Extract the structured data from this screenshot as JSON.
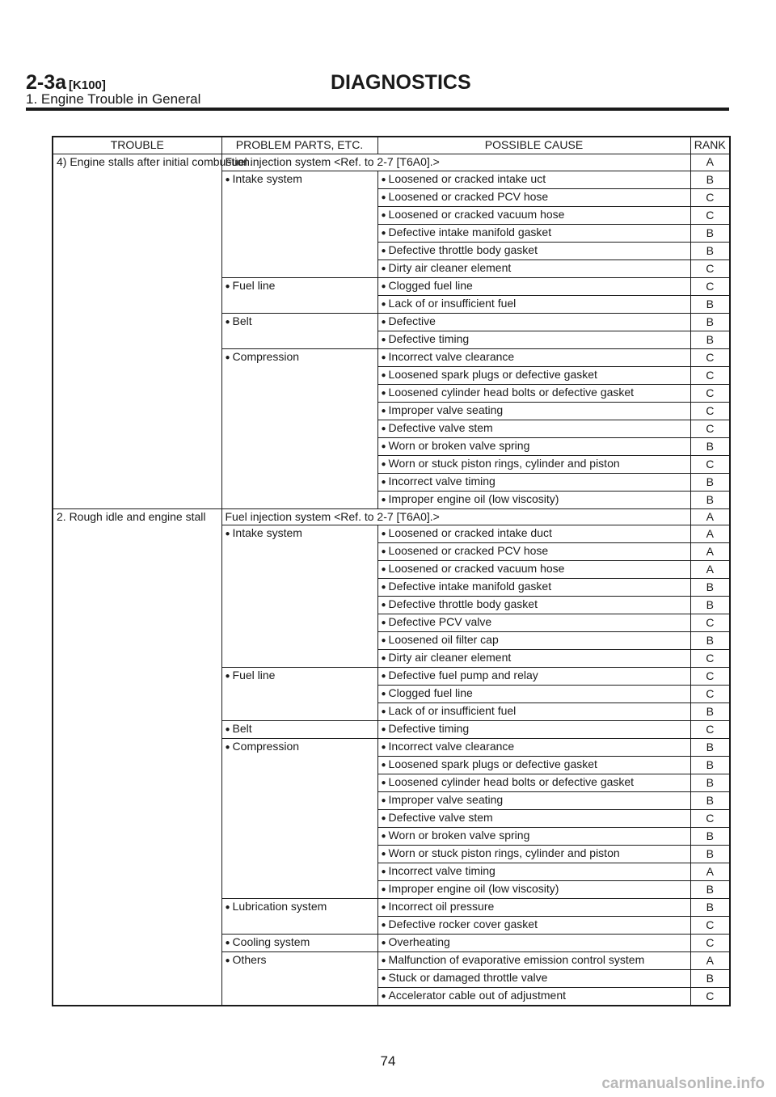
{
  "header": {
    "code": "2-3a",
    "subcode": "[K100]",
    "title": "DIAGNOSTICS",
    "section": "1. Engine Trouble in General"
  },
  "columns": [
    "TROUBLE",
    "PROBLEM PARTS, ETC.",
    "POSSIBLE CAUSE",
    "RANK"
  ],
  "groups": [
    {
      "trouble": "4) Engine stalls after initial combustion.",
      "fuel_injection": {
        "label": "Fuel injection system <Ref. to 2-7 [T6A0].>",
        "rank": "A"
      },
      "parts": [
        {
          "part": "Intake system",
          "causes": [
            {
              "cause": "Loosened or cracked intake uct",
              "rank": "B"
            },
            {
              "cause": "Loosened or cracked PCV hose",
              "rank": "C"
            },
            {
              "cause": "Loosened or cracked vacuum hose",
              "rank": "C"
            },
            {
              "cause": "Defective intake manifold gasket",
              "rank": "B"
            },
            {
              "cause": "Defective throttle body gasket",
              "rank": "B"
            },
            {
              "cause": "Dirty air cleaner element",
              "rank": "C"
            }
          ]
        },
        {
          "part": "Fuel line",
          "causes": [
            {
              "cause": "Clogged fuel line",
              "rank": "C"
            },
            {
              "cause": "Lack of or insufficient fuel",
              "rank": "B"
            }
          ]
        },
        {
          "part": "Belt",
          "causes": [
            {
              "cause": "Defective",
              "rank": "B"
            },
            {
              "cause": "Defective timing",
              "rank": "B"
            }
          ]
        },
        {
          "part": "Compression",
          "causes": [
            {
              "cause": "Incorrect valve clearance",
              "rank": "C"
            },
            {
              "cause": "Loosened spark plugs or defective gasket",
              "rank": "C"
            },
            {
              "cause": "Loosened cylinder head bolts or defective gasket",
              "rank": "C"
            },
            {
              "cause": "Improper valve seating",
              "rank": "C"
            },
            {
              "cause": "Defective valve stem",
              "rank": "C"
            },
            {
              "cause": "Worn or broken valve spring",
              "rank": "B"
            },
            {
              "cause": "Worn or stuck piston rings, cylinder and piston",
              "rank": "C"
            },
            {
              "cause": "Incorrect valve timing",
              "rank": "B"
            },
            {
              "cause": "Improper engine oil (low viscosity)",
              "rank": "B"
            }
          ]
        }
      ]
    },
    {
      "trouble": "2. Rough idle and engine stall",
      "fuel_injection": {
        "label": "Fuel injection system <Ref. to 2-7 [T6A0].>",
        "rank": "A"
      },
      "parts": [
        {
          "part": "Intake system",
          "causes": [
            {
              "cause": "Loosened or cracked intake duct",
              "rank": "A"
            },
            {
              "cause": "Loosened or cracked PCV hose",
              "rank": "A"
            },
            {
              "cause": "Loosened or cracked vacuum hose",
              "rank": "A"
            },
            {
              "cause": "Defective intake manifold gasket",
              "rank": "B"
            },
            {
              "cause": "Defective throttle body gasket",
              "rank": "B"
            },
            {
              "cause": "Defective PCV valve",
              "rank": "C"
            },
            {
              "cause": "Loosened oil filter cap",
              "rank": "B"
            },
            {
              "cause": "Dirty air cleaner element",
              "rank": "C"
            }
          ]
        },
        {
          "part": "Fuel line",
          "causes": [
            {
              "cause": "Defective fuel pump and relay",
              "rank": "C"
            },
            {
              "cause": "Clogged fuel line",
              "rank": "C"
            },
            {
              "cause": "Lack of or insufficient fuel",
              "rank": "B"
            }
          ]
        },
        {
          "part": "Belt",
          "causes": [
            {
              "cause": "Defective timing",
              "rank": "C"
            }
          ]
        },
        {
          "part": "Compression",
          "causes": [
            {
              "cause": "Incorrect valve clearance",
              "rank": "B"
            },
            {
              "cause": "Loosened spark plugs or defective gasket",
              "rank": "B"
            },
            {
              "cause": "Loosened cylinder head bolts or defective gasket",
              "rank": "B"
            },
            {
              "cause": "Improper valve seating",
              "rank": "B"
            },
            {
              "cause": "Defective valve stem",
              "rank": "C"
            },
            {
              "cause": "Worn or broken valve spring",
              "rank": "B"
            },
            {
              "cause": "Worn or stuck piston rings, cylinder and piston",
              "rank": "B"
            },
            {
              "cause": "Incorrect valve timing",
              "rank": "A"
            },
            {
              "cause": "Improper engine oil (low viscosity)",
              "rank": "B"
            }
          ]
        },
        {
          "part": "Lubrication system",
          "causes": [
            {
              "cause": "Incorrect oil pressure",
              "rank": "B"
            },
            {
              "cause": "Defective rocker cover gasket",
              "rank": "C"
            }
          ]
        },
        {
          "part": "Cooling system",
          "causes": [
            {
              "cause": "Overheating",
              "rank": "C"
            }
          ]
        },
        {
          "part": "Others",
          "causes": [
            {
              "cause": "Malfunction of evaporative emission control system",
              "rank": "A"
            },
            {
              "cause": "Stuck or damaged throttle valve",
              "rank": "B"
            },
            {
              "cause": "Accelerator cable out of adjustment",
              "rank": "C"
            }
          ]
        }
      ]
    }
  ],
  "page_number": "74",
  "watermark": "carmanualsonline.info"
}
